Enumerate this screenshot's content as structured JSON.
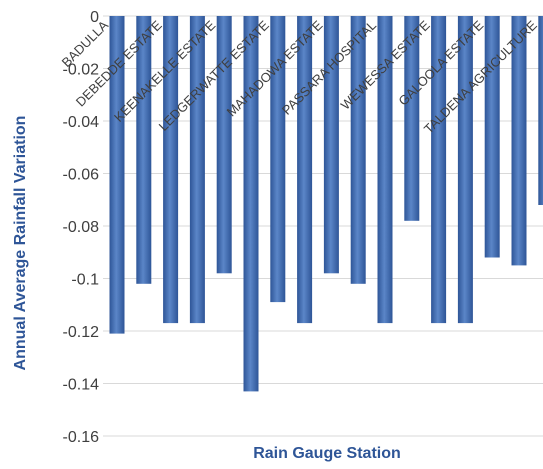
{
  "chart_data": {
    "type": "bar",
    "title": "",
    "xlabel": "Rain Gauge Station",
    "ylabel": "Annual Average Rainfall Variation",
    "categories": [
      "BADULLA",
      "DEBEDDE ESTATE",
      "KEENAKELLE ESTATE",
      "LEDGERWATTE ESTATE",
      "MAHADOWA ESTATE",
      "PASSARA HOSPITAL",
      "WEWESSA ESTATE",
      "GALOOLA ESTATE",
      "TALDENA AGRICULTURE",
      "",
      "",
      "",
      "",
      "",
      "",
      "",
      ""
    ],
    "values": [
      -0.121,
      -0.102,
      -0.117,
      -0.117,
      -0.098,
      -0.143,
      -0.109,
      -0.117,
      -0.098,
      -0.102,
      -0.117,
      -0.078,
      -0.117,
      -0.117,
      -0.092,
      -0.095,
      -0.072
    ],
    "ylim": [
      -0.16,
      0
    ],
    "yticks": [
      0,
      -0.02,
      -0.04,
      -0.06,
      -0.08,
      -0.1,
      -0.12,
      -0.14,
      -0.16
    ],
    "ytick_labels": [
      "0",
      "-0.02",
      "-0.04",
      "-0.06",
      "-0.08",
      "-0.1",
      "-0.12",
      "-0.14",
      "-0.16"
    ],
    "grid": true,
    "legend": "none",
    "bar_color": "#2e5597",
    "bar_color_light": "#5b86c8",
    "axis_title_color": "#2e5597",
    "tick_color": "#3f3f3f",
    "grid_color": "#d9d9d9"
  }
}
